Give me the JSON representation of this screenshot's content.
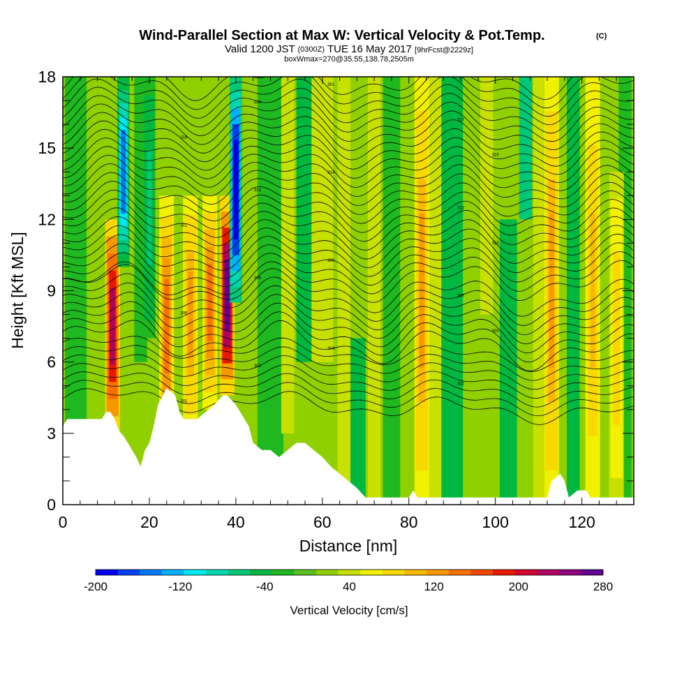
{
  "chart_data": {
    "type": "heatmap",
    "title": "Wind-Parallel Section at Max W: Vertical Velocity & Pot.Temp.",
    "title_mark": "(C)",
    "subtitle_main": "Valid 1200 JST",
    "subtitle_utc": "(0300Z)",
    "subtitle_date": "TUE 16 May 2017",
    "subtitle_fcst": "[9hrFcst@2229z]",
    "subtitle2": "boxWmax=270@35.55,138.78,2505m",
    "xlabel": "Distance [nm]",
    "ylabel": "Height [Kft MSL]",
    "xlim": [
      0,
      132
    ],
    "ylim": [
      0,
      18
    ],
    "x_ticks": [
      "0",
      "20",
      "40",
      "60",
      "80",
      "100",
      "120"
    ],
    "y_ticks": [
      "0",
      "3",
      "6",
      "9",
      "12",
      "15",
      "18"
    ],
    "colorbar": {
      "label": "Vertical Velocity [cm/s]",
      "range": [
        -200,
        280
      ],
      "tick_labels": [
        "-200",
        "-120",
        "-40",
        "40",
        "120",
        "200",
        "280"
      ],
      "colors": [
        "#0000f0",
        "#0040f0",
        "#0078f8",
        "#00b0f8",
        "#00e8f0",
        "#00d8b0",
        "#00c878",
        "#00b840",
        "#20b820",
        "#58c020",
        "#90d000",
        "#c8e000",
        "#f0f000",
        "#f8d800",
        "#f8b800",
        "#f89800",
        "#f87000",
        "#f04800",
        "#e81800",
        "#d00030",
        "#b00060",
        "#900080",
        "#600090"
      ]
    },
    "updraft_bands": [
      {
        "x": 11.5,
        "peak": 230
      },
      {
        "x": 24,
        "peak": 150
      },
      {
        "x": 29.5,
        "peak": 120
      },
      {
        "x": 34,
        "peak": 140
      },
      {
        "x": 38,
        "peak": 270
      },
      {
        "x": 83,
        "peak": 120
      },
      {
        "x": 113,
        "peak": 120
      },
      {
        "x": 122.5,
        "peak": 100
      },
      {
        "x": 128,
        "peak": 80
      }
    ],
    "downdraft_bands": [
      {
        "x": 14,
        "peak": -140
      },
      {
        "x": 40,
        "peak": -200
      },
      {
        "x": 20,
        "peak": -60
      }
    ],
    "contour_labels": [
      "301",
      "302",
      "303",
      "304",
      "305",
      "306",
      "307",
      "308",
      "309",
      "310",
      "311",
      "312",
      "313",
      "314",
      "315",
      "316",
      "317",
      "318"
    ]
  }
}
